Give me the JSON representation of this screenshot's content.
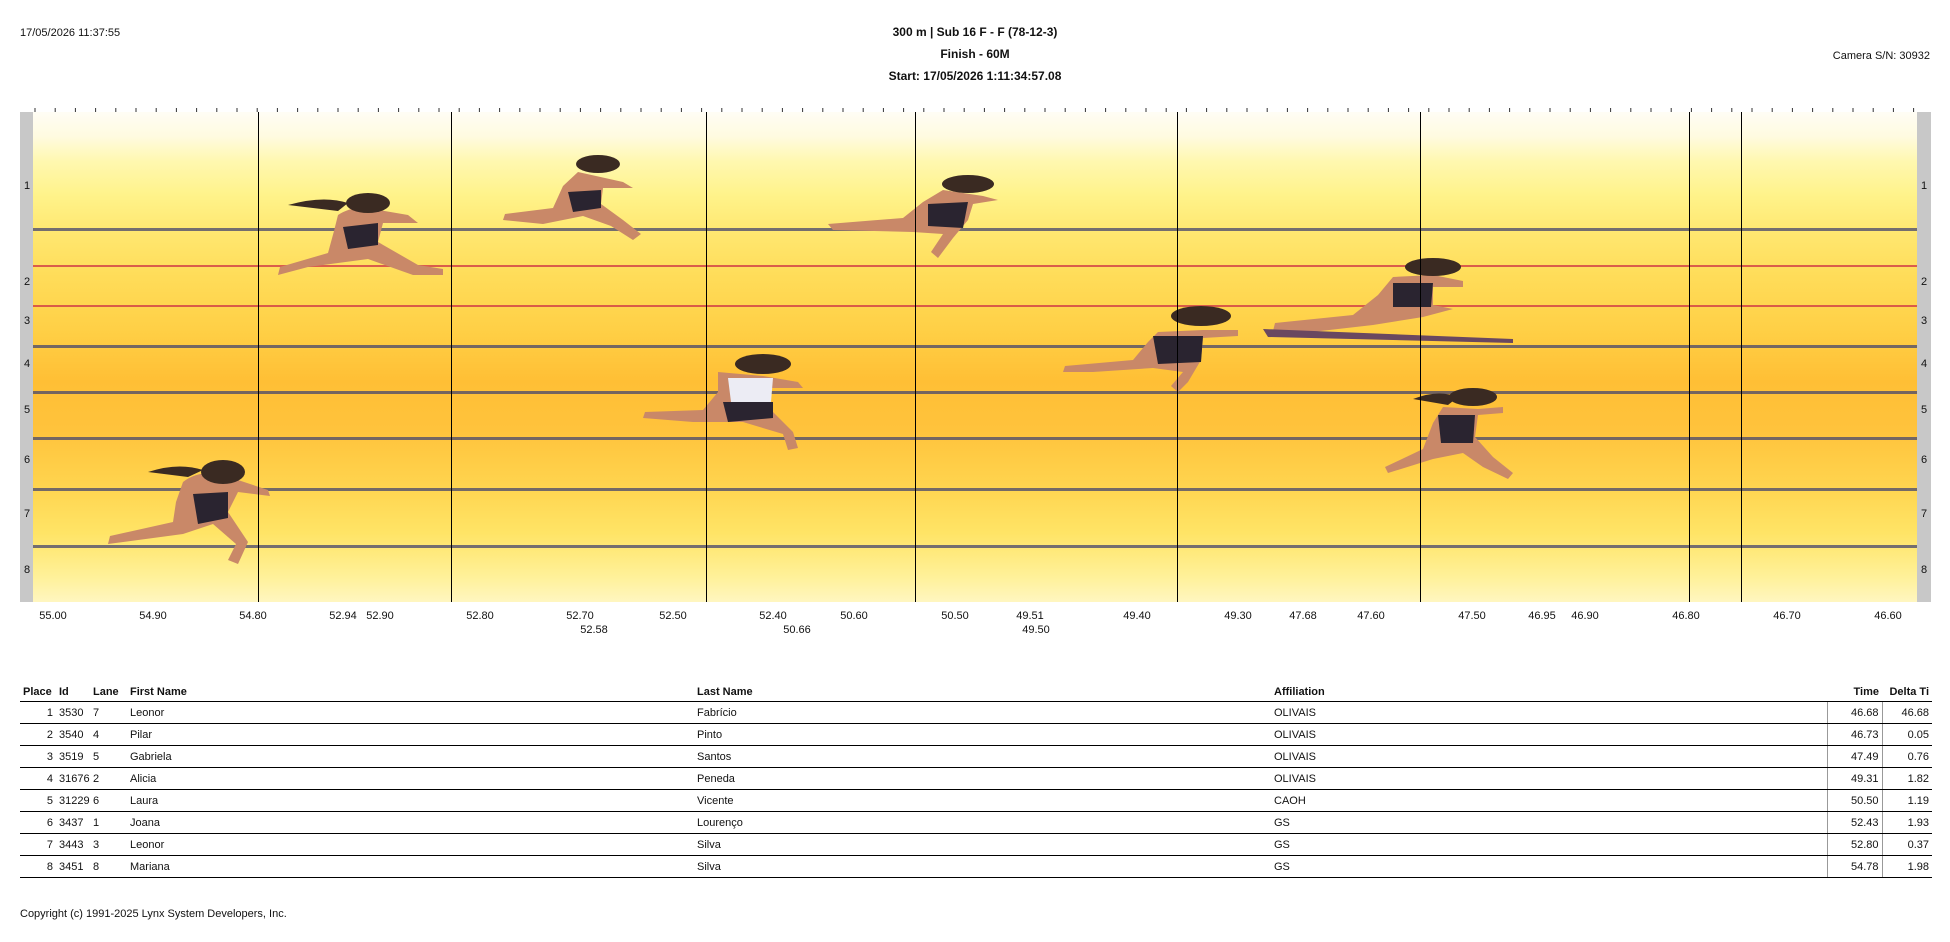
{
  "header": {
    "timestamp": "17/05/2026 11:37:55",
    "event_title": "300 m | Sub 16 F - F (78-12-3)",
    "finish_label": "Finish - 60M",
    "start_label": "Start: 17/05/2026 1:11:34:57.08",
    "camera": "Camera S/N: 30932"
  },
  "lane_labels": [
    "1",
    "2",
    "3",
    "4",
    "5",
    "6",
    "7",
    "8"
  ],
  "axis_labels": [
    {
      "text": "55.00"
    },
    {
      "text": "54.90"
    },
    {
      "text": "54.80"
    },
    {
      "text": "52.94"
    },
    {
      "text": "52.90"
    },
    {
      "text": "52.80"
    },
    {
      "text": "52.70"
    },
    {
      "text": "52.58"
    },
    {
      "text": "52.50"
    },
    {
      "text": "52.40"
    },
    {
      "text": "50.66"
    },
    {
      "text": "50.60"
    },
    {
      "text": "50.50"
    },
    {
      "text": "49.51"
    },
    {
      "text": "49.50"
    },
    {
      "text": "49.40"
    },
    {
      "text": "49.30"
    },
    {
      "text": "47.68"
    },
    {
      "text": "47.60"
    },
    {
      "text": "47.50"
    },
    {
      "text": "46.95"
    },
    {
      "text": "46.90"
    },
    {
      "text": "46.80"
    },
    {
      "text": "46.70"
    },
    {
      "text": "46.60"
    }
  ],
  "results": {
    "columns": [
      "Place",
      "Id",
      "Lane",
      "First Name",
      "Last Name",
      "Affiliation",
      "Time",
      "Delta Ti"
    ],
    "rows": [
      {
        "place": "1",
        "id": "3530",
        "lane": "7",
        "first": "Leonor",
        "last": "Fabrício",
        "affiliation": "OLIVAIS",
        "time": "46.68",
        "delta": "46.68"
      },
      {
        "place": "2",
        "id": "3540",
        "lane": "4",
        "first": "Pilar",
        "last": "Pinto",
        "affiliation": "OLIVAIS",
        "time": "46.73",
        "delta": "0.05"
      },
      {
        "place": "3",
        "id": "3519",
        "lane": "5",
        "first": "Gabriela",
        "last": "Santos",
        "affiliation": "OLIVAIS",
        "time": "47.49",
        "delta": "0.76"
      },
      {
        "place": "4",
        "id": "31676",
        "lane": "2",
        "first": "Alicia",
        "last": "Peneda",
        "affiliation": "OLIVAIS",
        "time": "49.31",
        "delta": "1.82"
      },
      {
        "place": "5",
        "id": "31229",
        "lane": "6",
        "first": "Laura",
        "last": "Vicente",
        "affiliation": "CAOH",
        "time": "50.50",
        "delta": "1.19"
      },
      {
        "place": "6",
        "id": "3437",
        "lane": "1",
        "first": "Joana",
        "last": "Lourenço",
        "affiliation": "GS",
        "time": "52.43",
        "delta": "1.93"
      },
      {
        "place": "7",
        "id": "3443",
        "lane": "3",
        "first": "Leonor",
        "last": "Silva",
        "affiliation": "GS",
        "time": "52.80",
        "delta": "0.37"
      },
      {
        "place": "8",
        "id": "3451",
        "lane": "8",
        "first": "Mariana",
        "last": "Silva",
        "affiliation": "GS",
        "time": "54.78",
        "delta": "1.98"
      }
    ]
  },
  "footer": {
    "copyright": "Copyright (c) 1991-2025 Lynx System Developers, Inc."
  },
  "colors": {
    "lane_line": "#46466e",
    "lane_line_red": "#cd3246",
    "skin": "#c98868",
    "hair": "#3a2a22",
    "kit": "#2a2430"
  }
}
